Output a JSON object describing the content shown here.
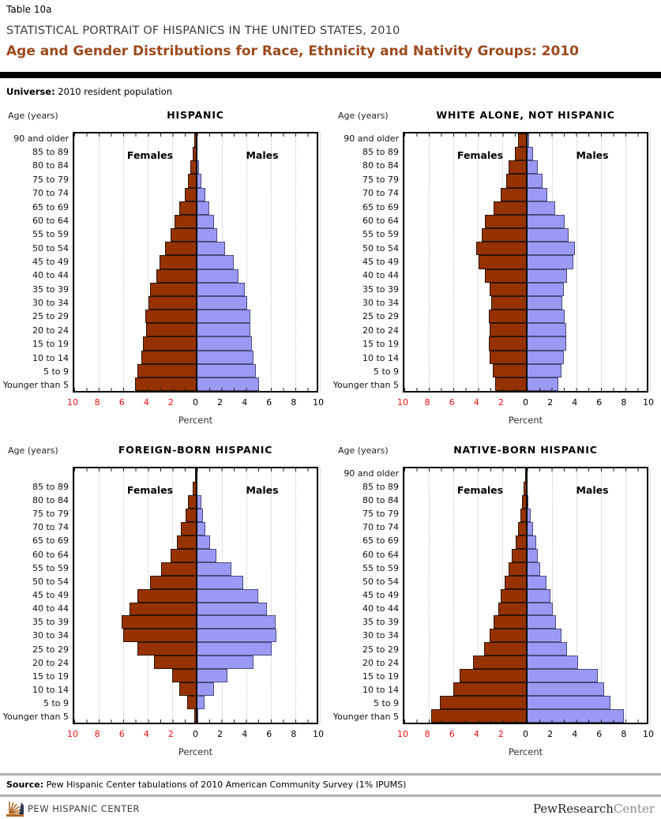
{
  "page": {
    "table_label": "Table 10a",
    "report_title": "STATISTICAL PORTRAIT OF HISPANICS IN THE UNITED STATES, 2010",
    "page_title": "Age and Gender Distributions for Race, Ethnicity and Nativity Groups: 2010",
    "universe_label": "Universe:",
    "universe_value": "2010 resident population"
  },
  "axis": {
    "age_axis_label": "Age (years)",
    "percent_label": "Percent",
    "tick_values": [
      -10,
      -8,
      -6,
      -4,
      -2,
      0,
      2,
      4,
      6,
      8,
      10
    ],
    "negative_tick_color": "#ee1111",
    "positive_tick_color": "#000000"
  },
  "legend": {
    "female_label": "Females",
    "male_label": "Males"
  },
  "colors": {
    "female_bar": "#963200",
    "male_bar": "#9a9af5",
    "title_accent": "#9c4a1d",
    "center_axis": "#000000"
  },
  "chart_data": [
    {
      "type": "bar",
      "subtype": "population-pyramid",
      "title": "HISPANIC",
      "xlabel": "Percent",
      "xlim": [
        -10,
        10
      ],
      "grid": true,
      "categories": [
        "90 and older",
        "85 to 89",
        "80 to 84",
        "75 to 79",
        "70 to 74",
        "65 to 69",
        "60 to 64",
        "55 to 59",
        "50 to 54",
        "45 to 49",
        "40 to 44",
        "35 to 39",
        "30 to 34",
        "25 to 29",
        "20 to 24",
        "15 to 19",
        "10 to 14",
        "5 to 9",
        "Younger than 5"
      ],
      "series": [
        {
          "name": "Females",
          "values": [
            0.1,
            0.2,
            0.4,
            0.6,
            0.9,
            1.3,
            1.7,
            2.0,
            2.5,
            2.9,
            3.2,
            3.7,
            3.8,
            4.1,
            4.0,
            4.3,
            4.4,
            4.7,
            4.9
          ]
        },
        {
          "name": "Males",
          "values": [
            0.05,
            0.15,
            0.3,
            0.5,
            0.8,
            1.1,
            1.5,
            1.8,
            2.4,
            3.1,
            3.5,
            4.0,
            4.2,
            4.5,
            4.5,
            4.6,
            4.7,
            4.9,
            5.2
          ]
        }
      ]
    },
    {
      "type": "bar",
      "subtype": "population-pyramid",
      "title": "WHITE ALONE, NOT HISPANIC",
      "xlabel": "Percent",
      "xlim": [
        -10,
        10
      ],
      "grid": true,
      "categories": [
        "90 and older",
        "85 to 89",
        "80 to 84",
        "75 to 79",
        "70 to 74",
        "65 to 69",
        "60 to 64",
        "55 to 59",
        "50 to 54",
        "45 to 49",
        "40 to 44",
        "35 to 39",
        "30 to 34",
        "25 to 29",
        "20 to 24",
        "15 to 19",
        "10 to 14",
        "5 to 9",
        "Younger than 5"
      ],
      "series": [
        {
          "name": "Females",
          "values": [
            0.6,
            0.9,
            1.4,
            1.6,
            2.0,
            2.6,
            3.3,
            3.6,
            4.0,
            3.8,
            3.3,
            2.9,
            2.8,
            3.0,
            2.9,
            3.0,
            2.9,
            2.7,
            2.5
          ]
        },
        {
          "name": "Males",
          "values": [
            0.3,
            0.6,
            1.0,
            1.4,
            1.8,
            2.4,
            3.2,
            3.5,
            4.0,
            3.9,
            3.4,
            3.1,
            3.0,
            3.2,
            3.3,
            3.3,
            3.1,
            2.9,
            2.7
          ]
        }
      ]
    },
    {
      "type": "bar",
      "subtype": "population-pyramid",
      "title": "FOREIGN-BORN HISPANIC",
      "xlabel": "Percent",
      "xlim": [
        -10,
        10
      ],
      "grid": true,
      "categories": [
        "",
        "85 to 89",
        "80 to 84",
        "75 to 79",
        "70 to 74",
        "65 to 69",
        "60 to 64",
        "55 to 59",
        "50 to 54",
        "45 to 49",
        "40 to 44",
        "35 to 39",
        "30 to 34",
        "25 to 29",
        "20 to 24",
        "15 to 19",
        "10 to 14",
        "5 to 9",
        "Younger than 5"
      ],
      "series": [
        {
          "name": "Females",
          "values": [
            0.05,
            0.25,
            0.6,
            0.8,
            1.2,
            1.5,
            2.0,
            2.8,
            3.7,
            4.7,
            5.4,
            6.0,
            5.9,
            4.7,
            3.4,
            1.9,
            1.3,
            0.7,
            0.1
          ]
        },
        {
          "name": "Males",
          "values": [
            0.03,
            0.15,
            0.45,
            0.6,
            0.8,
            1.2,
            1.7,
            2.9,
            3.9,
            5.1,
            5.8,
            6.5,
            6.6,
            6.2,
            4.7,
            2.6,
            1.5,
            0.75,
            0.2
          ]
        }
      ]
    },
    {
      "type": "bar",
      "subtype": "population-pyramid",
      "title": "NATIVE-BORN HISPANIC",
      "xlabel": "Percent",
      "xlim": [
        -10,
        10
      ],
      "grid": true,
      "categories": [
        "90 and older",
        "85 to 89",
        "80 to 84",
        "75 to 79",
        "70 to 74",
        "65 to 69",
        "60 to 64",
        "55 to 59",
        "50 to 54",
        "45 to 49",
        "40 to 44",
        "35 to 39",
        "30 to 34",
        "25 to 29",
        "20 to 24",
        "15 to 19",
        "10 to 14",
        "5 to 9",
        "Younger than 5"
      ],
      "series": [
        {
          "name": "Females",
          "values": [
            0.05,
            0.15,
            0.3,
            0.4,
            0.6,
            0.8,
            1.1,
            1.4,
            1.7,
            2.0,
            2.2,
            2.6,
            2.9,
            3.4,
            4.3,
            5.4,
            5.9,
            7.0,
            7.7
          ]
        },
        {
          "name": "Males",
          "values": [
            0.03,
            0.1,
            0.25,
            0.4,
            0.6,
            0.85,
            1.0,
            1.2,
            1.7,
            2.0,
            2.2,
            2.5,
            2.9,
            3.4,
            4.3,
            5.9,
            6.4,
            6.9,
            8.0
          ]
        }
      ]
    }
  ],
  "footer": {
    "source_label": "Source:",
    "source_text": "Pew Hispanic Center tabulations of 2010 American Community Survey (1% IPUMS)",
    "left_logo_text": "PEW HISPANIC CENTER",
    "right_logo_prefix": "PewResearch",
    "right_logo_suffix": "Center"
  }
}
